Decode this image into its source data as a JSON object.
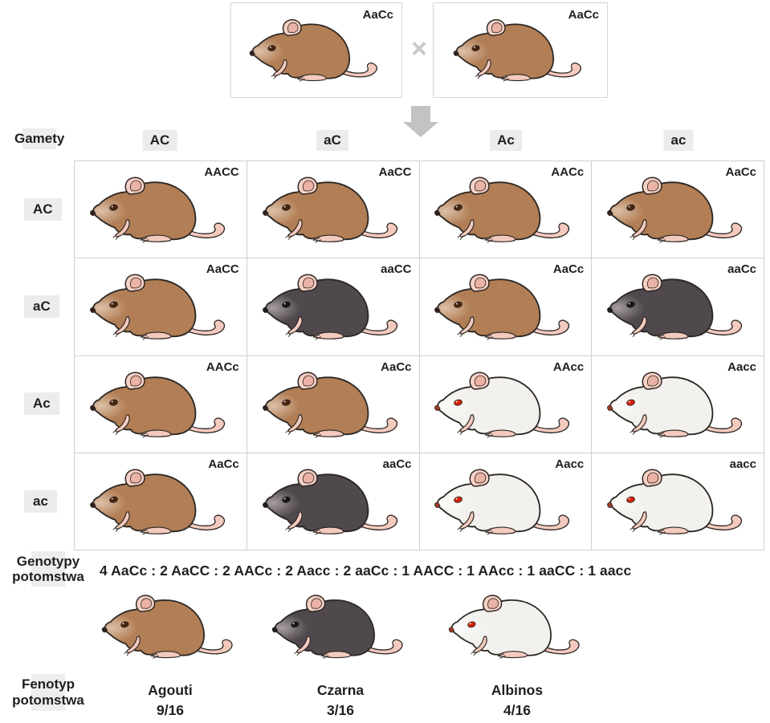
{
  "parents": {
    "left_label": "AaCc",
    "right_label": "AaCc",
    "left_phenotype": "agouti",
    "right_phenotype": "agouti",
    "cross_symbol": "×"
  },
  "gametes": {
    "header_label": "Gamety",
    "columns": [
      "AC",
      "aC",
      "Ac",
      "ac"
    ],
    "rows": [
      "AC",
      "aC",
      "Ac",
      "ac"
    ]
  },
  "punnett": {
    "cells": [
      [
        {
          "genotype": "AACC",
          "phenotype": "agouti"
        },
        {
          "genotype": "AaCC",
          "phenotype": "agouti"
        },
        {
          "genotype": "AACc",
          "phenotype": "agouti"
        },
        {
          "genotype": "AaCc",
          "phenotype": "agouti"
        }
      ],
      [
        {
          "genotype": "AaCC",
          "phenotype": "agouti"
        },
        {
          "genotype": "aaCC",
          "phenotype": "czarna"
        },
        {
          "genotype": "AaCc",
          "phenotype": "agouti"
        },
        {
          "genotype": "aaCc",
          "phenotype": "czarna"
        }
      ],
      [
        {
          "genotype": "AACc",
          "phenotype": "agouti"
        },
        {
          "genotype": "AaCc",
          "phenotype": "agouti"
        },
        {
          "genotype": "AAcc",
          "phenotype": "albinos"
        },
        {
          "genotype": "Aacc",
          "phenotype": "albinos"
        }
      ],
      [
        {
          "genotype": "AaCc",
          "phenotype": "agouti"
        },
        {
          "genotype": "aaCc",
          "phenotype": "czarna"
        },
        {
          "genotype": "Aacc",
          "phenotype": "albinos"
        },
        {
          "genotype": "aacc",
          "phenotype": "albinos"
        }
      ]
    ]
  },
  "genotypes_summary": {
    "label_line1": "Genotypy",
    "label_line2": "potomstwa",
    "ratio": "4 AaCc : 2 AaCC : 2 AACc : 2 Aacc : 2 aaCc : 1 AACC : 1 AAcc : 1 aaCC : 1 aacc"
  },
  "phenotypes_summary": {
    "label_line1": "Fenotyp",
    "label_line2": "potomstwa",
    "items": [
      {
        "name": "Agouti",
        "fraction": "9/16",
        "phenotype": "agouti"
      },
      {
        "name": "Czarna",
        "fraction": "3/16",
        "phenotype": "czarna"
      },
      {
        "name": "Albinos",
        "fraction": "4/16",
        "phenotype": "albinos"
      }
    ]
  },
  "colors": {
    "outline": "#2b2724",
    "ear": "#f7d0c5",
    "ear_inner": "#eab3a5",
    "pink": "#f5cabe",
    "grid_border": "#cfcfcf",
    "box_border": "#d6d6d6",
    "header_bg": "#ececec",
    "arrow": "#c3c3c3",
    "cross": "#c9c9c9",
    "text": "#1f1f1f",
    "phenotypes": {
      "agouti": {
        "body": "#b17e55",
        "light": "#ddc1a9",
        "eye": "#4a240e",
        "nose": "#33201a"
      },
      "czarna": {
        "body": "#4f484c",
        "light": "#a89ea1",
        "eye": "#151515",
        "nose": "#1e1b1c"
      },
      "albinos": {
        "body": "#f3f1ee",
        "light": "#fdfbf9",
        "eye": "#d6200a",
        "nose": "#a23827"
      }
    }
  }
}
